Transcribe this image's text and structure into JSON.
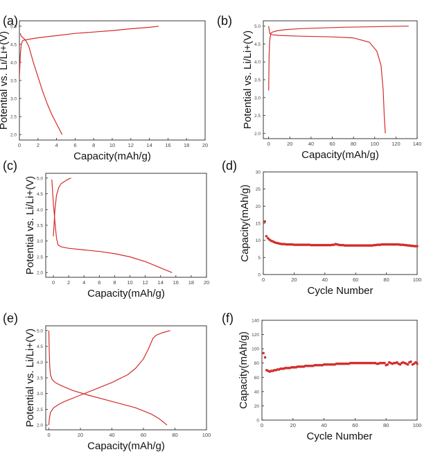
{
  "figure": {
    "line_color": "#d42a2a",
    "marker_color": "#e03030",
    "panels": [
      {
        "label": "(a)",
        "chart_data": {
          "type": "line",
          "xlabel": "Capacity(mAh/g)",
          "ylabel": "Potential vs. Li/Li+(V)",
          "xlim": [
            0,
            20
          ],
          "ylim": [
            1.85,
            5.15
          ],
          "xticks": [
            0,
            2,
            4,
            6,
            8,
            10,
            12,
            14,
            16,
            18,
            20
          ],
          "yticks": [
            2.0,
            2.5,
            3.0,
            3.5,
            4.0,
            4.5,
            5.0
          ],
          "series": [
            {
              "x": [
                0,
                0.1,
                0.2,
                0.35,
                0.6,
                1.0,
                2,
                4,
                6,
                8,
                10,
                12,
                14,
                15
              ],
              "y": [
                3.6,
                4.2,
                4.5,
                4.6,
                4.62,
                4.64,
                4.68,
                4.74,
                4.8,
                4.84,
                4.88,
                4.93,
                4.97,
                5.0
              ]
            },
            {
              "x": [
                0.1,
                0.2,
                0.4,
                0.7,
                1.0,
                1.5,
                2,
                2.5,
                3,
                3.5,
                4,
                4.6
              ],
              "y": [
                4.8,
                4.72,
                4.68,
                4.6,
                4.45,
                4.0,
                3.6,
                3.2,
                2.85,
                2.55,
                2.3,
                2.0
              ]
            }
          ]
        }
      },
      {
        "label": "(b)",
        "chart_data": {
          "type": "line",
          "xlabel": "Capacity(mAh/g)",
          "ylabel": "Potential vs. Li/Li+(V)",
          "xlim": [
            -5,
            140
          ],
          "ylim": [
            1.85,
            5.15
          ],
          "xticks": [
            0,
            20,
            40,
            60,
            80,
            100,
            120,
            140
          ],
          "yticks": [
            2.0,
            2.5,
            3.0,
            3.5,
            4.0,
            4.5,
            5.0
          ],
          "series": [
            {
              "x": [
                0,
                0.5,
                1,
                2,
                4,
                8,
                15,
                30,
                50,
                70,
                90,
                110,
                132
              ],
              "y": [
                3.2,
                4.2,
                4.6,
                4.8,
                4.84,
                4.87,
                4.9,
                4.93,
                4.95,
                4.97,
                4.98,
                4.99,
                5.0
              ]
            },
            {
              "x": [
                0,
                1,
                3,
                10,
                30,
                60,
                80,
                95,
                102,
                106,
                108,
                109,
                110
              ],
              "y": [
                5.0,
                4.8,
                4.76,
                4.74,
                4.72,
                4.7,
                4.67,
                4.55,
                4.3,
                3.9,
                3.2,
                2.5,
                2.0
              ]
            }
          ]
        }
      },
      {
        "label": "(c)",
        "chart_data": {
          "type": "line",
          "xlabel": "Capacity(mAh/g)",
          "ylabel": "Potential vs. Li/Li+(V)",
          "xlim": [
            -1,
            20
          ],
          "ylim": [
            1.85,
            5.15
          ],
          "xticks": [
            0,
            2,
            4,
            6,
            8,
            10,
            12,
            14,
            16,
            18,
            20
          ],
          "yticks": [
            2.0,
            2.5,
            3.0,
            3.5,
            4.0,
            4.5,
            5.0
          ],
          "series": [
            {
              "x": [
                0,
                0.1,
                0.2,
                0.4,
                0.7,
                1.0,
                1.5,
                2.0,
                2.3
              ],
              "y": [
                3.15,
                3.6,
                4.0,
                4.45,
                4.7,
                4.82,
                4.9,
                4.97,
                5.0
              ]
            },
            {
              "x": [
                -0.2,
                0,
                0.2,
                0.4,
                0.6,
                1,
                2,
                4,
                6,
                8,
                10,
                12,
                14,
                15.5
              ],
              "y": [
                4.95,
                4.2,
                3.6,
                3.1,
                2.88,
                2.82,
                2.77,
                2.72,
                2.67,
                2.6,
                2.5,
                2.35,
                2.15,
                2.0
              ]
            }
          ]
        }
      },
      {
        "label": "(d)",
        "chart_data": {
          "type": "scatter",
          "xlabel": "Cycle Number",
          "ylabel": "Capacity(mAh/g)",
          "xlim": [
            0,
            100
          ],
          "ylim": [
            0,
            30
          ],
          "xticks": [
            0,
            20,
            40,
            60,
            80,
            100
          ],
          "yticks": [
            0,
            5,
            10,
            15,
            20,
            25,
            30
          ],
          "series": [
            {
              "x_start": 1,
              "x_step": 1,
              "y": [
                15.5,
                11.2,
                10.6,
                10.2,
                9.9,
                9.7,
                9.5,
                9.3,
                9.2,
                9.1,
                9.0,
                8.9,
                8.9,
                8.9,
                8.8,
                8.8,
                8.8,
                8.8,
                8.8,
                8.7,
                8.7,
                8.7,
                8.7,
                8.7,
                8.7,
                8.7,
                8.7,
                8.7,
                8.7,
                8.7,
                8.6,
                8.6,
                8.6,
                8.6,
                8.6,
                8.6,
                8.6,
                8.6,
                8.6,
                8.6,
                8.6,
                8.6,
                8.6,
                8.6,
                8.7,
                8.7,
                8.9,
                8.8,
                8.7,
                8.6,
                8.6,
                8.6,
                8.5,
                8.5,
                8.5,
                8.5,
                8.5,
                8.5,
                8.5,
                8.5,
                8.5,
                8.5,
                8.5,
                8.5,
                8.5,
                8.5,
                8.5,
                8.5,
                8.5,
                8.5,
                8.5,
                8.6,
                8.6,
                8.7,
                8.7,
                8.7,
                8.8,
                8.8,
                8.8,
                8.8,
                8.8,
                8.8,
                8.8,
                8.8,
                8.8,
                8.8,
                8.8,
                8.8,
                8.7,
                8.7,
                8.7,
                8.6,
                8.6,
                8.5,
                8.5,
                8.4,
                8.4,
                8.3,
                8.3,
                8.3
              ]
            }
          ]
        }
      },
      {
        "label": "(e)",
        "chart_data": {
          "type": "line",
          "xlabel": "Capacity(mAh/g)",
          "ylabel": "Potential vs. Li/Li+(V)",
          "xlim": [
            -2,
            100
          ],
          "ylim": [
            1.85,
            5.15
          ],
          "xticks": [
            0,
            20,
            40,
            60,
            80,
            100
          ],
          "yticks": [
            2.0,
            2.5,
            3.0,
            3.5,
            4.0,
            4.5,
            5.0
          ],
          "series": [
            {
              "x": [
                0,
                0.3,
                1,
                3,
                6,
                10,
                20,
                30,
                40,
                50,
                55,
                60,
                63,
                66,
                68,
                72,
                77
              ],
              "y": [
                2.0,
                2.2,
                2.4,
                2.55,
                2.65,
                2.75,
                2.95,
                3.15,
                3.35,
                3.6,
                3.8,
                4.1,
                4.4,
                4.75,
                4.85,
                4.93,
                5.0
              ]
            },
            {
              "x": [
                0,
                0.2,
                0.5,
                1,
                2,
                4,
                8,
                15,
                25,
                40,
                55,
                65,
                70,
                75
              ],
              "y": [
                5.0,
                4.4,
                3.9,
                3.6,
                3.45,
                3.35,
                3.25,
                3.1,
                2.95,
                2.75,
                2.55,
                2.35,
                2.2,
                2.0
              ]
            }
          ]
        }
      },
      {
        "label": "(f)",
        "chart_data": {
          "type": "scatter",
          "xlabel": "Cycle Number",
          "ylabel": "Capacity(mAh/g)",
          "xlim": [
            0,
            100
          ],
          "ylim": [
            0,
            140
          ],
          "xticks": [
            0,
            20,
            40,
            60,
            80,
            100
          ],
          "yticks": [
            0,
            20,
            40,
            60,
            80,
            100,
            120,
            140
          ],
          "series": [
            {
              "x_start": 1,
              "x_step": 1,
              "y": [
                94,
                88,
                70,
                69,
                68,
                69,
                69,
                70,
                70,
                71,
                71,
                72,
                72,
                72,
                73,
                73,
                73,
                73,
                74,
                74,
                74,
                74,
                75,
                75,
                75,
                75,
                75,
                76,
                76,
                76,
                76,
                76,
                76,
                77,
                77,
                77,
                77,
                77,
                77,
                78,
                78,
                78,
                78,
                78,
                78,
                78,
                78,
                79,
                79,
                79,
                79,
                79,
                79,
                79,
                79,
                79,
                80,
                80,
                80,
                80,
                80,
                80,
                80,
                80,
                80,
                80,
                80,
                80,
                80,
                80,
                80,
                80,
                80,
                79,
                79,
                80,
                80,
                80,
                80,
                77,
                78,
                81,
                80,
                79,
                80,
                80,
                81,
                79,
                78,
                80,
                81,
                80,
                79,
                78,
                81,
                82,
                78,
                79,
                81,
                79
              ]
            }
          ]
        }
      }
    ]
  }
}
